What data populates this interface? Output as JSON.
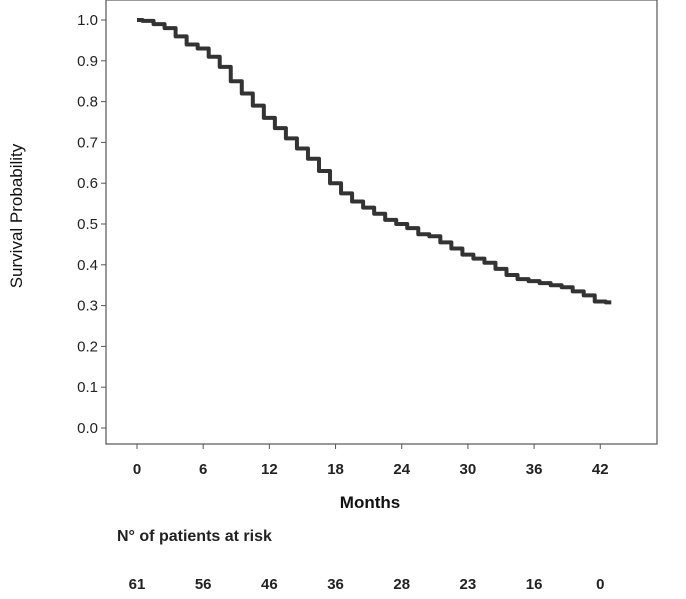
{
  "chart_data": {
    "type": "line",
    "xlabel": "Months",
    "ylabel": "Survival Probability",
    "xlim": [
      -2,
      47
    ],
    "ylim": [
      -0.02,
      1.05
    ],
    "x_ticks": [
      "0",
      "6",
      "12",
      "18",
      "24",
      "30",
      "36",
      "42"
    ],
    "y_ticks": [
      "0.0",
      "0.1",
      "0.2",
      "0.3",
      "0.4",
      "0.5",
      "0.6",
      "0.7",
      "0.8",
      "0.9",
      "1.0"
    ],
    "grid": false,
    "series": [
      {
        "x": [
          0,
          1,
          2,
          3,
          4,
          5,
          6,
          7,
          8,
          9,
          10,
          11,
          12,
          13,
          14,
          15,
          16,
          17,
          18,
          19,
          20,
          21,
          22,
          23,
          24,
          25,
          26,
          27,
          28,
          29,
          30,
          31,
          32,
          33,
          34,
          35,
          36,
          37,
          38,
          39,
          40,
          41,
          42,
          43
        ],
        "y": [
          1.0,
          0.998,
          0.99,
          0.98,
          0.96,
          0.94,
          0.93,
          0.91,
          0.885,
          0.85,
          0.82,
          0.79,
          0.76,
          0.735,
          0.71,
          0.685,
          0.66,
          0.63,
          0.6,
          0.575,
          0.555,
          0.54,
          0.525,
          0.51,
          0.5,
          0.49,
          0.475,
          0.47,
          0.455,
          0.44,
          0.425,
          0.415,
          0.405,
          0.39,
          0.375,
          0.365,
          0.36,
          0.355,
          0.35,
          0.345,
          0.335,
          0.325,
          0.31,
          0.308
        ]
      }
    ]
  },
  "risk_table": {
    "title": "N° of patients at risk",
    "values": [
      "61",
      "56",
      "46",
      "36",
      "28",
      "23",
      "16",
      "0"
    ]
  },
  "colors": {
    "curve": "#333333",
    "axis": "#555555"
  }
}
